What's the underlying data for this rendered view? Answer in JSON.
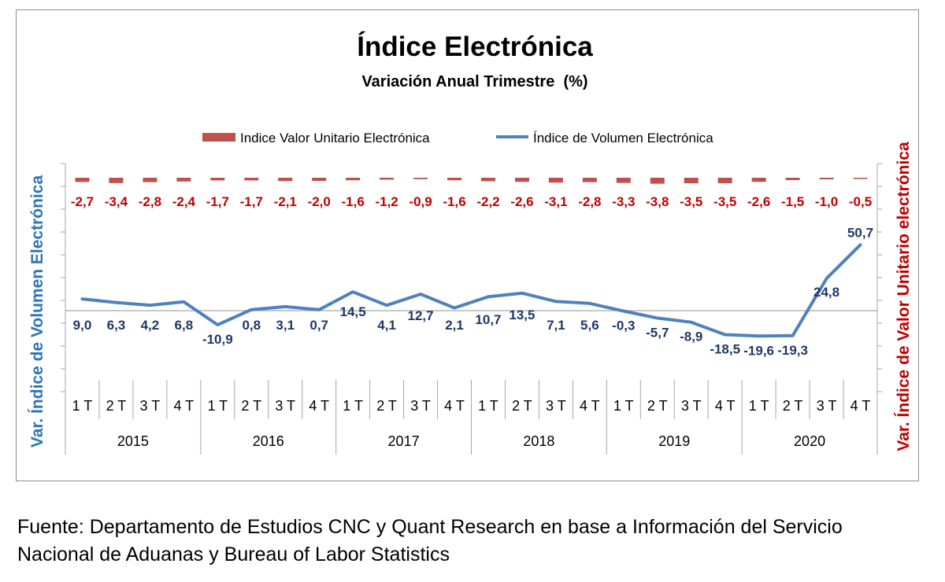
{
  "chart_data": {
    "type": "line",
    "title": "Índice Electrónica",
    "subtitle": "Variación Anual Trimestre  (%)",
    "ylabel_left": "Var. Índice de Volumen Electrónica",
    "ylabel_right": "Var. Índice de Valor Unitario electrónica",
    "legend_placement": "top",
    "grid": false,
    "quarters": [
      "1 T",
      "2 T",
      "3 T",
      "4 T",
      "1 T",
      "2 T",
      "3 T",
      "4 T",
      "1 T",
      "2 T",
      "3 T",
      "4 T",
      "1 T",
      "2 T",
      "3 T",
      "4 T",
      "1 T",
      "2 T",
      "3 T",
      "4 T",
      "1 T",
      "2 T",
      "3 T",
      "4 T"
    ],
    "years": [
      "2015",
      "2016",
      "2017",
      "2018",
      "2019",
      "2020"
    ],
    "series": [
      {
        "name": "Indice Valor Unitario Electrónica",
        "style": "dashed",
        "color": "#c0504d",
        "label_color": "#c00000",
        "values": [
          -2.7,
          -3.4,
          -2.8,
          -2.4,
          -1.7,
          -1.7,
          -2.1,
          -2.0,
          -1.6,
          -1.2,
          -0.9,
          -1.6,
          -2.2,
          -2.6,
          -3.1,
          -2.8,
          -3.3,
          -3.8,
          -3.5,
          -3.5,
          -2.6,
          -1.5,
          -1.0,
          -0.5
        ],
        "labels": [
          "-2,7",
          "-3,4",
          "-2,8",
          "-2,4",
          "-1,7",
          "-1,7",
          "-2,1",
          "-2,0",
          "-1,6",
          "-1,2",
          "-0,9",
          "-1,6",
          "-2,2",
          "-2,6",
          "-3,1",
          "-2,8",
          "-3,3",
          "-3,8",
          "-3,5",
          "-3,5",
          "-2,6",
          "-1,5",
          "-1,0",
          "-0,5"
        ]
      },
      {
        "name": "Índice de Volumen Electrónica",
        "style": "solid",
        "color": "#4f81bd",
        "label_color": "#1f3864",
        "values": [
          9.0,
          6.3,
          4.2,
          6.8,
          -10.9,
          0.8,
          3.1,
          0.7,
          14.5,
          4.1,
          12.7,
          2.1,
          10.7,
          13.5,
          7.1,
          5.6,
          -0.3,
          -5.7,
          -8.9,
          -18.5,
          -19.6,
          -19.3,
          24.8,
          50.7
        ],
        "labels": [
          "9,0",
          "6,3",
          "4,2",
          "6,8",
          "-10,9",
          "0,8",
          "3,1",
          "0,7",
          "14,5",
          "4,1",
          "12,7",
          "2,1",
          "10,7",
          "13,5",
          "7,1",
          "5,6",
          "-0,3",
          "-5,7",
          "-8,9",
          "-18,5",
          "-19,6",
          "-19,3",
          "24,8",
          "50,7"
        ]
      }
    ]
  },
  "source": {
    "line1": "Fuente: Departamento de Estudios CNC y Quant Research en base a Información del Servicio",
    "line2": "Nacional de Aduanas y Bureau of Labor Statistics"
  }
}
